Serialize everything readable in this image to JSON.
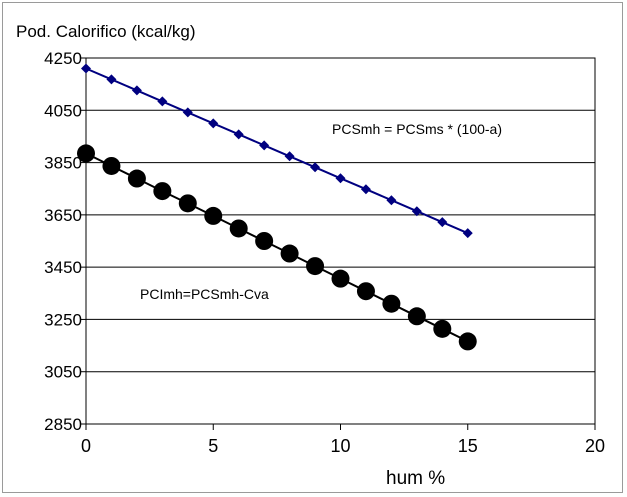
{
  "chart_data": {
    "type": "line",
    "ylabel": "Pod. Calorifico (kcal/kg)",
    "xlabel": "hum %",
    "xlim": [
      0,
      20
    ],
    "ylim": [
      2850,
      4250
    ],
    "x_ticks": [
      0,
      5,
      10,
      15,
      20
    ],
    "y_ticks": [
      2850,
      3050,
      3250,
      3450,
      3650,
      3850,
      4050,
      4250
    ],
    "grid": {
      "horizontal": true,
      "vertical": false
    },
    "series": [
      {
        "name": "PCSmh = PCSms * (100-a)",
        "marker": "diamond",
        "color": "#000080",
        "x": [
          0,
          1,
          2,
          3,
          4,
          5,
          6,
          7,
          8,
          9,
          10,
          11,
          12,
          13,
          14,
          15
        ],
        "y": [
          4210,
          4168,
          4126,
          4084,
          4042,
          4000,
          3958,
          3916,
          3874,
          3832,
          3790,
          3748,
          3706,
          3664,
          3622,
          3580
        ]
      },
      {
        "name": "PCImh=PCSmh-Cva",
        "marker": "circle",
        "color": "#000000",
        "x": [
          0,
          1,
          2,
          3,
          4,
          5,
          6,
          7,
          8,
          9,
          10,
          11,
          12,
          13,
          14,
          15
        ],
        "y": [
          3885,
          3837,
          3789,
          3741,
          3694,
          3646,
          3598,
          3550,
          3502,
          3454,
          3406,
          3358,
          3310,
          3262,
          3214,
          3166
        ]
      }
    ]
  }
}
